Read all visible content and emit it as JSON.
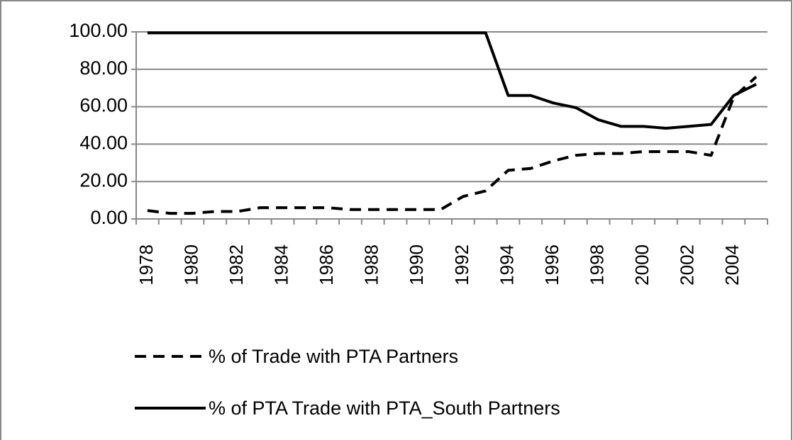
{
  "chart_data": {
    "type": "line",
    "categories": [
      "1978",
      null,
      "1980",
      null,
      "1982",
      null,
      "1984",
      null,
      "1986",
      null,
      "1988",
      null,
      "1990",
      null,
      "1992",
      null,
      "1994",
      null,
      "1996",
      null,
      "1998",
      null,
      "2000",
      null,
      "2002",
      null,
      "2004",
      null
    ],
    "series": [
      {
        "name": "% of Trade with PTA Partners",
        "color": "#000000",
        "dash": true,
        "values": [
          4.5,
          3,
          3,
          4,
          4,
          6,
          6,
          6,
          6,
          5,
          5,
          5,
          5,
          5,
          12,
          15,
          26,
          27,
          31,
          34,
          35,
          35,
          36,
          36,
          36,
          34,
          65,
          76
        ]
      },
      {
        "name": "% of PTA Trade with PTA_South Partners",
        "color": "#000000",
        "dash": false,
        "values": [
          99.5,
          99.5,
          99.5,
          99.5,
          99.5,
          99.5,
          99.5,
          99.5,
          99.5,
          99.5,
          99.5,
          99.5,
          99.5,
          99.5,
          99.5,
          99.5,
          66,
          66,
          62,
          59.5,
          53,
          49.5,
          49.5,
          48.5,
          49.5,
          50.5,
          66,
          72
        ]
      }
    ],
    "ylim": [
      0,
      100
    ],
    "yticks": [
      {
        "value": 0,
        "label": "0.00"
      },
      {
        "value": 20,
        "label": "20.00"
      },
      {
        "value": 40,
        "label": "40.00"
      },
      {
        "value": 60,
        "label": "60.00"
      },
      {
        "value": 80,
        "label": "80.00"
      },
      {
        "value": 100,
        "label": "100.00"
      }
    ],
    "grid": true,
    "legend": "bottom"
  }
}
